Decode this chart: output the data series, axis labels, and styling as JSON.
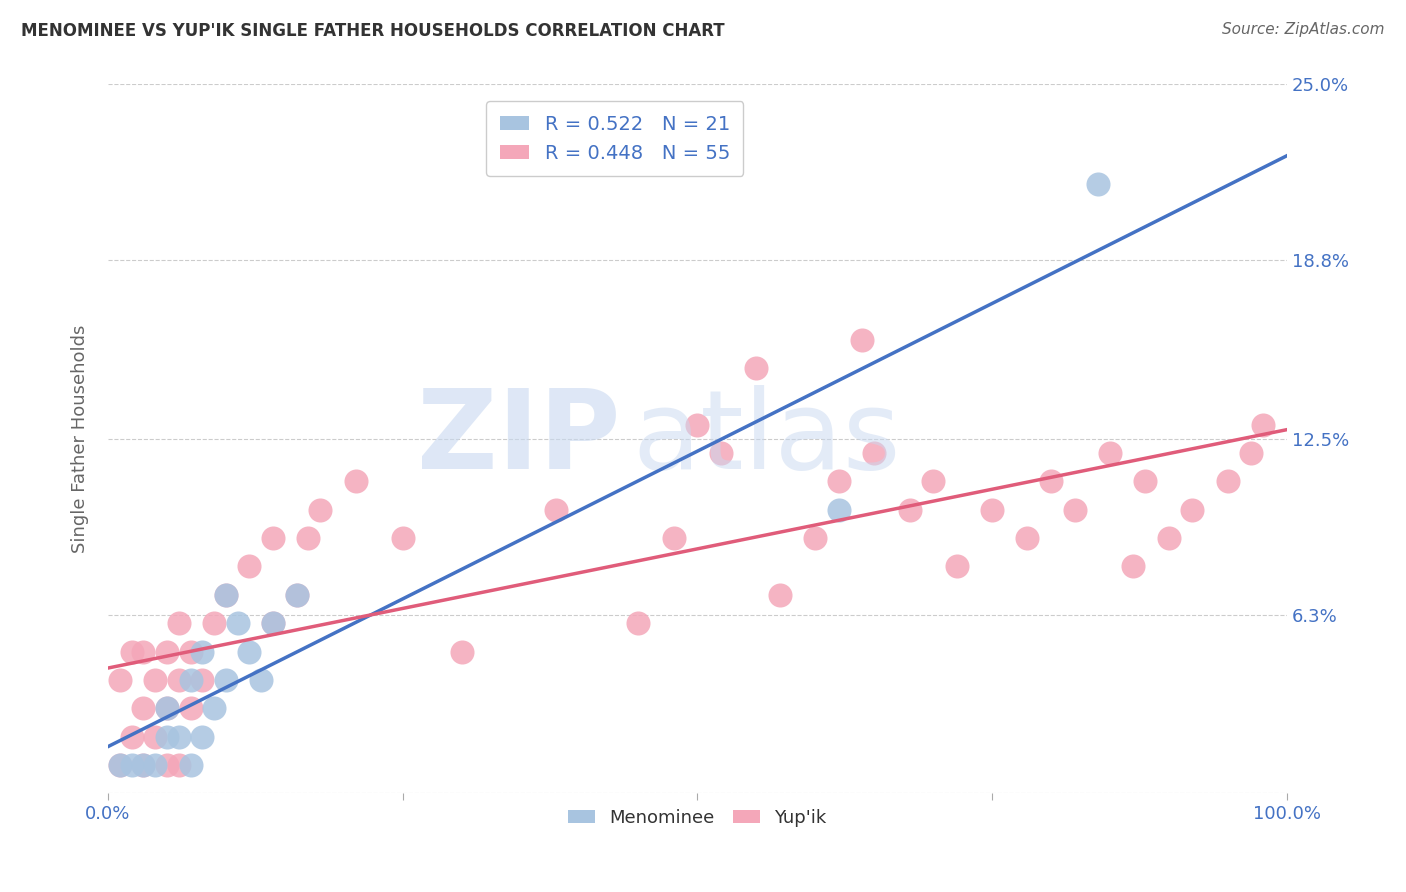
{
  "title": "MENOMINEE VS YUP'IK SINGLE FATHER HOUSEHOLDS CORRELATION CHART",
  "source": "Source: ZipAtlas.com",
  "ylabel": "Single Father Households",
  "xlim": [
    0,
    1.0
  ],
  "ylim": [
    0,
    0.25
  ],
  "yticks": [
    0.0,
    0.063,
    0.125,
    0.188,
    0.25
  ],
  "right_ytick_labels": [
    "",
    "6.3%",
    "12.5%",
    "18.8%",
    "25.0%"
  ],
  "xticks": [
    0.0,
    0.25,
    0.5,
    0.75,
    1.0
  ],
  "xtick_labels": [
    "0.0%",
    "",
    "",
    "",
    "100.0%"
  ],
  "menominee_color": "#a8c4e0",
  "yupik_color": "#f4a7b9",
  "menominee_line_color": "#4472c4",
  "yupik_line_color": "#e05c7a",
  "R_menominee": 0.522,
  "N_menominee": 21,
  "R_yupik": 0.448,
  "N_yupik": 55,
  "background_color": "#ffffff",
  "grid_color": "#cccccc",
  "title_color": "#333333",
  "label_color": "#4472c4",
  "axis_label_color": "#666666",
  "menominee_x": [
    0.01,
    0.02,
    0.03,
    0.04,
    0.05,
    0.05,
    0.06,
    0.07,
    0.07,
    0.08,
    0.08,
    0.09,
    0.1,
    0.1,
    0.11,
    0.12,
    0.13,
    0.14,
    0.16,
    0.62,
    0.84
  ],
  "menominee_y": [
    0.01,
    0.01,
    0.01,
    0.01,
    0.02,
    0.03,
    0.02,
    0.01,
    0.04,
    0.02,
    0.05,
    0.03,
    0.04,
    0.07,
    0.06,
    0.05,
    0.04,
    0.06,
    0.07,
    0.1,
    0.215
  ],
  "yupik_x": [
    0.01,
    0.01,
    0.02,
    0.02,
    0.03,
    0.03,
    0.03,
    0.04,
    0.04,
    0.05,
    0.05,
    0.05,
    0.06,
    0.06,
    0.06,
    0.07,
    0.07,
    0.08,
    0.09,
    0.1,
    0.12,
    0.14,
    0.14,
    0.16,
    0.17,
    0.18,
    0.21,
    0.25,
    0.3,
    0.38,
    0.45,
    0.48,
    0.5,
    0.52,
    0.55,
    0.57,
    0.6,
    0.62,
    0.64,
    0.65,
    0.68,
    0.7,
    0.72,
    0.75,
    0.78,
    0.8,
    0.82,
    0.85,
    0.87,
    0.88,
    0.9,
    0.92,
    0.95,
    0.97,
    0.98
  ],
  "yupik_y": [
    0.01,
    0.04,
    0.02,
    0.05,
    0.01,
    0.03,
    0.05,
    0.02,
    0.04,
    0.01,
    0.03,
    0.05,
    0.01,
    0.04,
    0.06,
    0.03,
    0.05,
    0.04,
    0.06,
    0.07,
    0.08,
    0.06,
    0.09,
    0.07,
    0.09,
    0.1,
    0.11,
    0.09,
    0.05,
    0.1,
    0.06,
    0.09,
    0.13,
    0.12,
    0.15,
    0.07,
    0.09,
    0.11,
    0.16,
    0.12,
    0.1,
    0.11,
    0.08,
    0.1,
    0.09,
    0.11,
    0.1,
    0.12,
    0.08,
    0.11,
    0.09,
    0.1,
    0.11,
    0.12,
    0.13
  ]
}
